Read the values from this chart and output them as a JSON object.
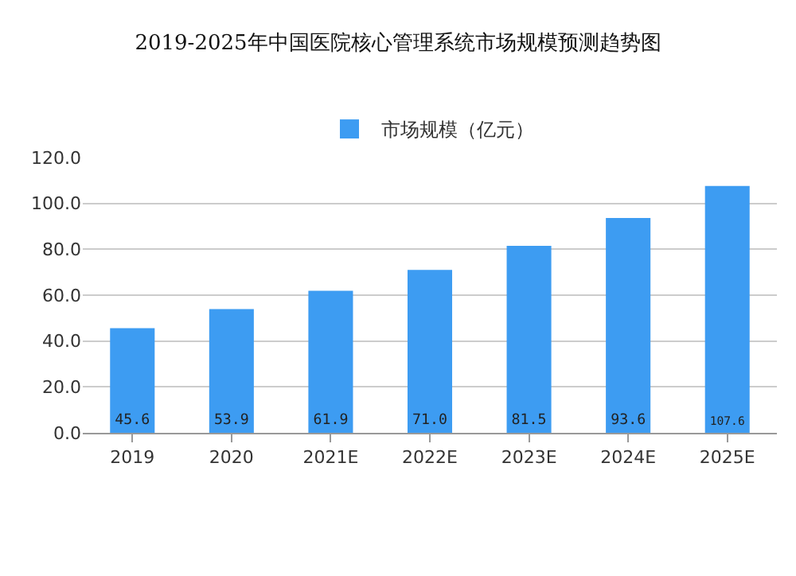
{
  "chart_data": {
    "type": "bar",
    "title": "2019-2025年中国医院核心管理系统市场规模预测趋势图",
    "categories": [
      "2019",
      "2020",
      "2021E",
      "2022E",
      "2023E",
      "2024E",
      "2025E"
    ],
    "series": [
      {
        "name": "市场规模（亿元）",
        "color": "#3d9cf2",
        "values": [
          45.6,
          53.9,
          61.9,
          71.0,
          81.5,
          93.6,
          107.6
        ],
        "value_labels": [
          "45.6",
          "53.9",
          "61.9",
          "71.0",
          "81.5",
          "93.6",
          "107.6"
        ]
      }
    ],
    "ylim": [
      0,
      120
    ],
    "yticks": [
      {
        "value": 0,
        "label": "0.0"
      },
      {
        "value": 20,
        "label": "20.0"
      },
      {
        "value": 40,
        "label": "40.0"
      },
      {
        "value": 60,
        "label": "60.0"
      },
      {
        "value": 80,
        "label": "80.0"
      },
      {
        "value": 100,
        "label": "100.0"
      },
      {
        "value": 120,
        "label": "120.0"
      }
    ],
    "grid": "y",
    "legend": "top"
  }
}
